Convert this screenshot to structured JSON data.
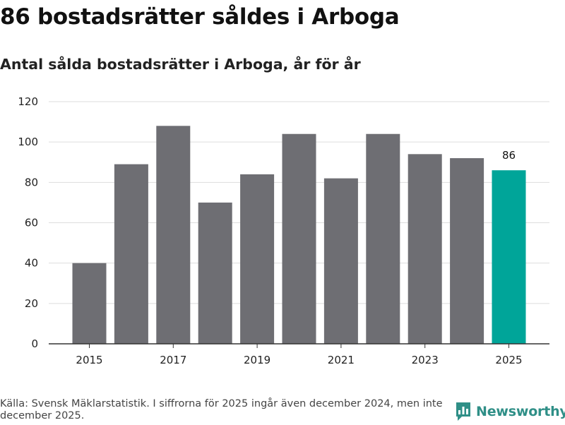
{
  "header": {
    "title": "86 bostadsrätter såldes i Arboga",
    "subtitle": "Antal sålda bostadsrätter i Arboga, år för år"
  },
  "chart_data": {
    "type": "bar",
    "categories": [
      "2015",
      "2016",
      "2017",
      "2018",
      "2019",
      "2020",
      "2021",
      "2022",
      "2023",
      "2024",
      "2025"
    ],
    "values": [
      40,
      89,
      108,
      70,
      84,
      104,
      82,
      104,
      94,
      92,
      86
    ],
    "x_tick_labels": [
      "2015",
      "2017",
      "2019",
      "2021",
      "2023",
      "2025"
    ],
    "y_ticks": [
      0,
      20,
      40,
      60,
      80,
      100,
      120
    ],
    "ylim": [
      0,
      120
    ],
    "grid": true,
    "highlight": {
      "category": "2025",
      "label": "86"
    },
    "colors": {
      "bar": "#6e6e73",
      "highlight": "#00a599",
      "grid": "#dddddd",
      "axis": "#333333"
    }
  },
  "footer": {
    "source": "Källa: Svensk Mäklarstatistik. I siffrorna för 2025 ingår även december 2024, men inte december 2025."
  },
  "logo": {
    "text": "Newsworthy",
    "icon": "bar-chart-icon",
    "color": "#2f8f87"
  }
}
